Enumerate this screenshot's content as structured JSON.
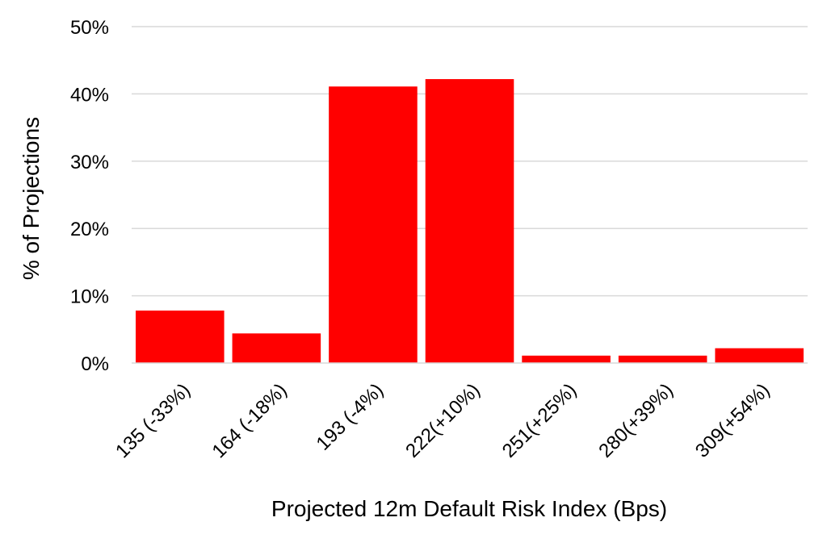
{
  "chart_data": {
    "type": "bar",
    "title": "",
    "xlabel": "Projected 12m Default Risk Index (Bps)",
    "ylabel": "% of Projections",
    "categories": [
      "135 (-33%)",
      "164 (-18%)",
      "193 (-4%)",
      "222(+10%)",
      "251(+25%)",
      "280(+39%)",
      "309(+54%)"
    ],
    "values": [
      7.8,
      4.4,
      41.1,
      42.2,
      1.1,
      1.1,
      2.2
    ],
    "ylim": [
      0,
      50
    ],
    "yticks": [
      "0%",
      "10%",
      "20%",
      "30%",
      "40%",
      "50%"
    ],
    "grid": true,
    "bar_color": "#ff0000",
    "grid_color": "#d9d9d9"
  }
}
